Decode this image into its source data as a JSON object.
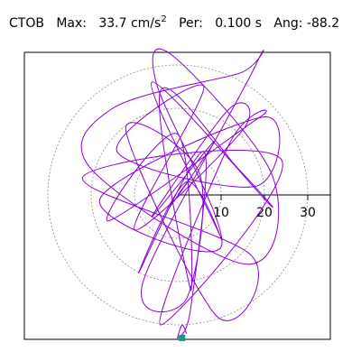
{
  "header": {
    "station": "CTOB",
    "max_label": "Max:",
    "max_value": "33.7",
    "max_unit": "cm/s",
    "max_exp": "2",
    "per_label": "Per:",
    "per_value": "0.100 s",
    "ang_label": "Ang:",
    "ang_value": "-88.2"
  },
  "chart_data": {
    "type": "line",
    "description_of_axes": "polar particle-motion plot, radial axis in cm/s^2",
    "radial_ticks": [
      "10",
      "20",
      "30"
    ],
    "radial_tick_values": [
      10,
      20,
      30
    ],
    "ring_values": [
      10,
      20,
      30
    ],
    "radial_axis_range": [
      0,
      35
    ],
    "grid": "dotted rings",
    "series": [
      {
        "color": "#8a00d4",
        "x": [
          0,
          3,
          -2,
          5,
          8,
          -6,
          12,
          15,
          -10,
          6,
          -14,
          18,
          20,
          -18,
          10,
          -5,
          -1,
          22,
          16,
          -20,
          -15,
          14,
          18,
          -8,
          2,
          5,
          -12,
          9,
          17,
          -22,
          24,
          -4,
          12,
          19,
          -16,
          0,
          3,
          -4,
          14,
          21,
          -6,
          10,
          2,
          -9,
          6,
          3,
          0,
          1,
          2
        ],
        "y": [
          0,
          4,
          -3,
          7,
          12,
          -5,
          20,
          15,
          -8,
          25,
          10,
          2,
          18,
          -1,
          -12,
          26,
          32,
          4,
          -16,
          6,
          20,
          28,
          30,
          -20,
          -24,
          5,
          15,
          -28,
          -14,
          4,
          8,
          -30,
          12,
          18,
          -6,
          14,
          -22,
          24,
          6,
          -2,
          26,
          -10,
          3,
          -18,
          10,
          -26,
          -33,
          -30,
          -32
        ]
      }
    ],
    "end_marker": {
      "color": "#109a80",
      "x": 1,
      "y": -33
    }
  }
}
